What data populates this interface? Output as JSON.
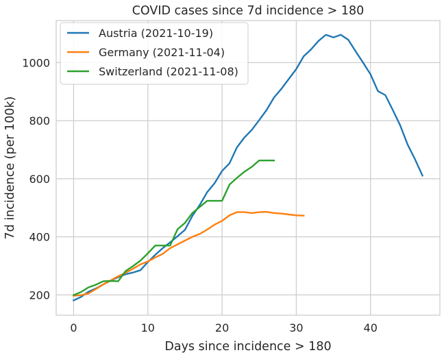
{
  "chart_data": {
    "type": "line",
    "title": "COVID cases since 7d incidence > 180",
    "xlabel": "Days since incidence > 180",
    "ylabel": "7d incidence (per 100k)",
    "xlim": [
      -2.35,
      49.35
    ],
    "ylim": [
      130,
      1145
    ],
    "xticks": [
      0,
      10,
      20,
      30,
      40
    ],
    "yticks": [
      200,
      400,
      600,
      800,
      1000
    ],
    "grid": true,
    "legend_position": "top-left",
    "series": [
      {
        "name": "Austria (2021-10-19)",
        "color": "#1f77b4",
        "x": [
          0,
          1,
          2,
          3,
          4,
          5,
          6,
          7,
          8,
          9,
          10,
          11,
          12,
          13,
          14,
          15,
          16,
          17,
          18,
          19,
          20,
          21,
          22,
          23,
          24,
          25,
          26,
          27,
          28,
          29,
          30,
          31,
          32,
          33,
          34,
          35,
          36,
          37,
          38,
          39,
          40,
          41,
          42,
          43,
          44,
          45,
          46,
          47
        ],
        "y": [
          181,
          193,
          211,
          222,
          236,
          249,
          261,
          271,
          277,
          285,
          313,
          338,
          361,
          381,
          402,
          424,
          472,
          510,
          554,
          585,
          627,
          653,
          708,
          742,
          768,
          802,
          837,
          880,
          910,
          944,
          978,
          1022,
          1046,
          1075,
          1096,
          1087,
          1096,
          1079,
          1039,
          1000,
          960,
          902,
          888,
          837,
          784,
          718,
          667,
          611
        ]
      },
      {
        "name": "Germany (2021-11-04)",
        "color": "#ff7f0e",
        "x": [
          0,
          1,
          2,
          3,
          4,
          5,
          6,
          7,
          8,
          9,
          10,
          11,
          12,
          13,
          14,
          15,
          16,
          17,
          18,
          19,
          20,
          21,
          22,
          23,
          24,
          25,
          26,
          27,
          28,
          29,
          30,
          31
        ],
        "y": [
          197,
          199,
          205,
          220,
          236,
          250,
          264,
          276,
          290,
          305,
          315,
          329,
          341,
          361,
          374,
          387,
          400,
          410,
          425,
          442,
          455,
          474,
          485,
          485,
          482,
          485,
          486,
          482,
          480,
          477,
          474,
          473
        ]
      },
      {
        "name": "Switzerland (2021-11-08)",
        "color": "#2ca02c",
        "x": [
          0,
          1,
          2,
          3,
          4,
          5,
          6,
          7,
          8,
          9,
          10,
          11,
          12,
          13,
          14,
          15,
          16,
          17,
          18,
          19,
          20,
          21,
          22,
          23,
          24,
          25,
          26,
          27
        ],
        "y": [
          199,
          210,
          226,
          235,
          247,
          248,
          247,
          282,
          299,
          318,
          343,
          370,
          370,
          370,
          426,
          448,
          482,
          503,
          524,
          524,
          524,
          580,
          603,
          624,
          641,
          663,
          663,
          663
        ]
      }
    ]
  }
}
